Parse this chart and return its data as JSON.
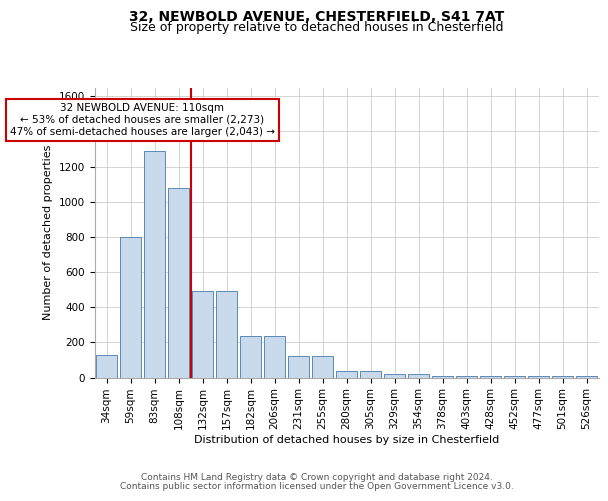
{
  "title_line1": "32, NEWBOLD AVENUE, CHESTERFIELD, S41 7AT",
  "title_line2": "Size of property relative to detached houses in Chesterfield",
  "xlabel": "Distribution of detached houses by size in Chesterfield",
  "ylabel": "Number of detached properties",
  "footer_line1": "Contains HM Land Registry data © Crown copyright and database right 2024.",
  "footer_line2": "Contains public sector information licensed under the Open Government Licence v3.0.",
  "annotation_line1": "32 NEWBOLD AVENUE: 110sqm",
  "annotation_line2": "← 53% of detached houses are smaller (2,273)",
  "annotation_line3": "47% of semi-detached houses are larger (2,043) →",
  "bar_color": "#c9d9ec",
  "bar_edge_color": "#5b88b5",
  "vline_color": "#cc0000",
  "vline_bin_index": 3,
  "categories": [
    "34sqm",
    "59sqm",
    "83sqm",
    "108sqm",
    "132sqm",
    "157sqm",
    "182sqm",
    "206sqm",
    "231sqm",
    "255sqm",
    "280sqm",
    "305sqm",
    "329sqm",
    "354sqm",
    "378sqm",
    "403sqm",
    "428sqm",
    "452sqm",
    "477sqm",
    "501sqm",
    "526sqm"
  ],
  "values": [
    130,
    800,
    1290,
    1080,
    490,
    490,
    235,
    235,
    125,
    125,
    35,
    35,
    20,
    20,
    10,
    10,
    10,
    10,
    10,
    10,
    10
  ],
  "ylim": [
    0,
    1650
  ],
  "yticks": [
    0,
    200,
    400,
    600,
    800,
    1000,
    1200,
    1400,
    1600
  ],
  "grid_color": "#cccccc",
  "background_color": "#ffffff",
  "title_fontsize": 10,
  "subtitle_fontsize": 9,
  "axis_label_fontsize": 8,
  "tick_fontsize": 7.5,
  "annotation_fontsize": 7.5,
  "footer_fontsize": 6.5
}
